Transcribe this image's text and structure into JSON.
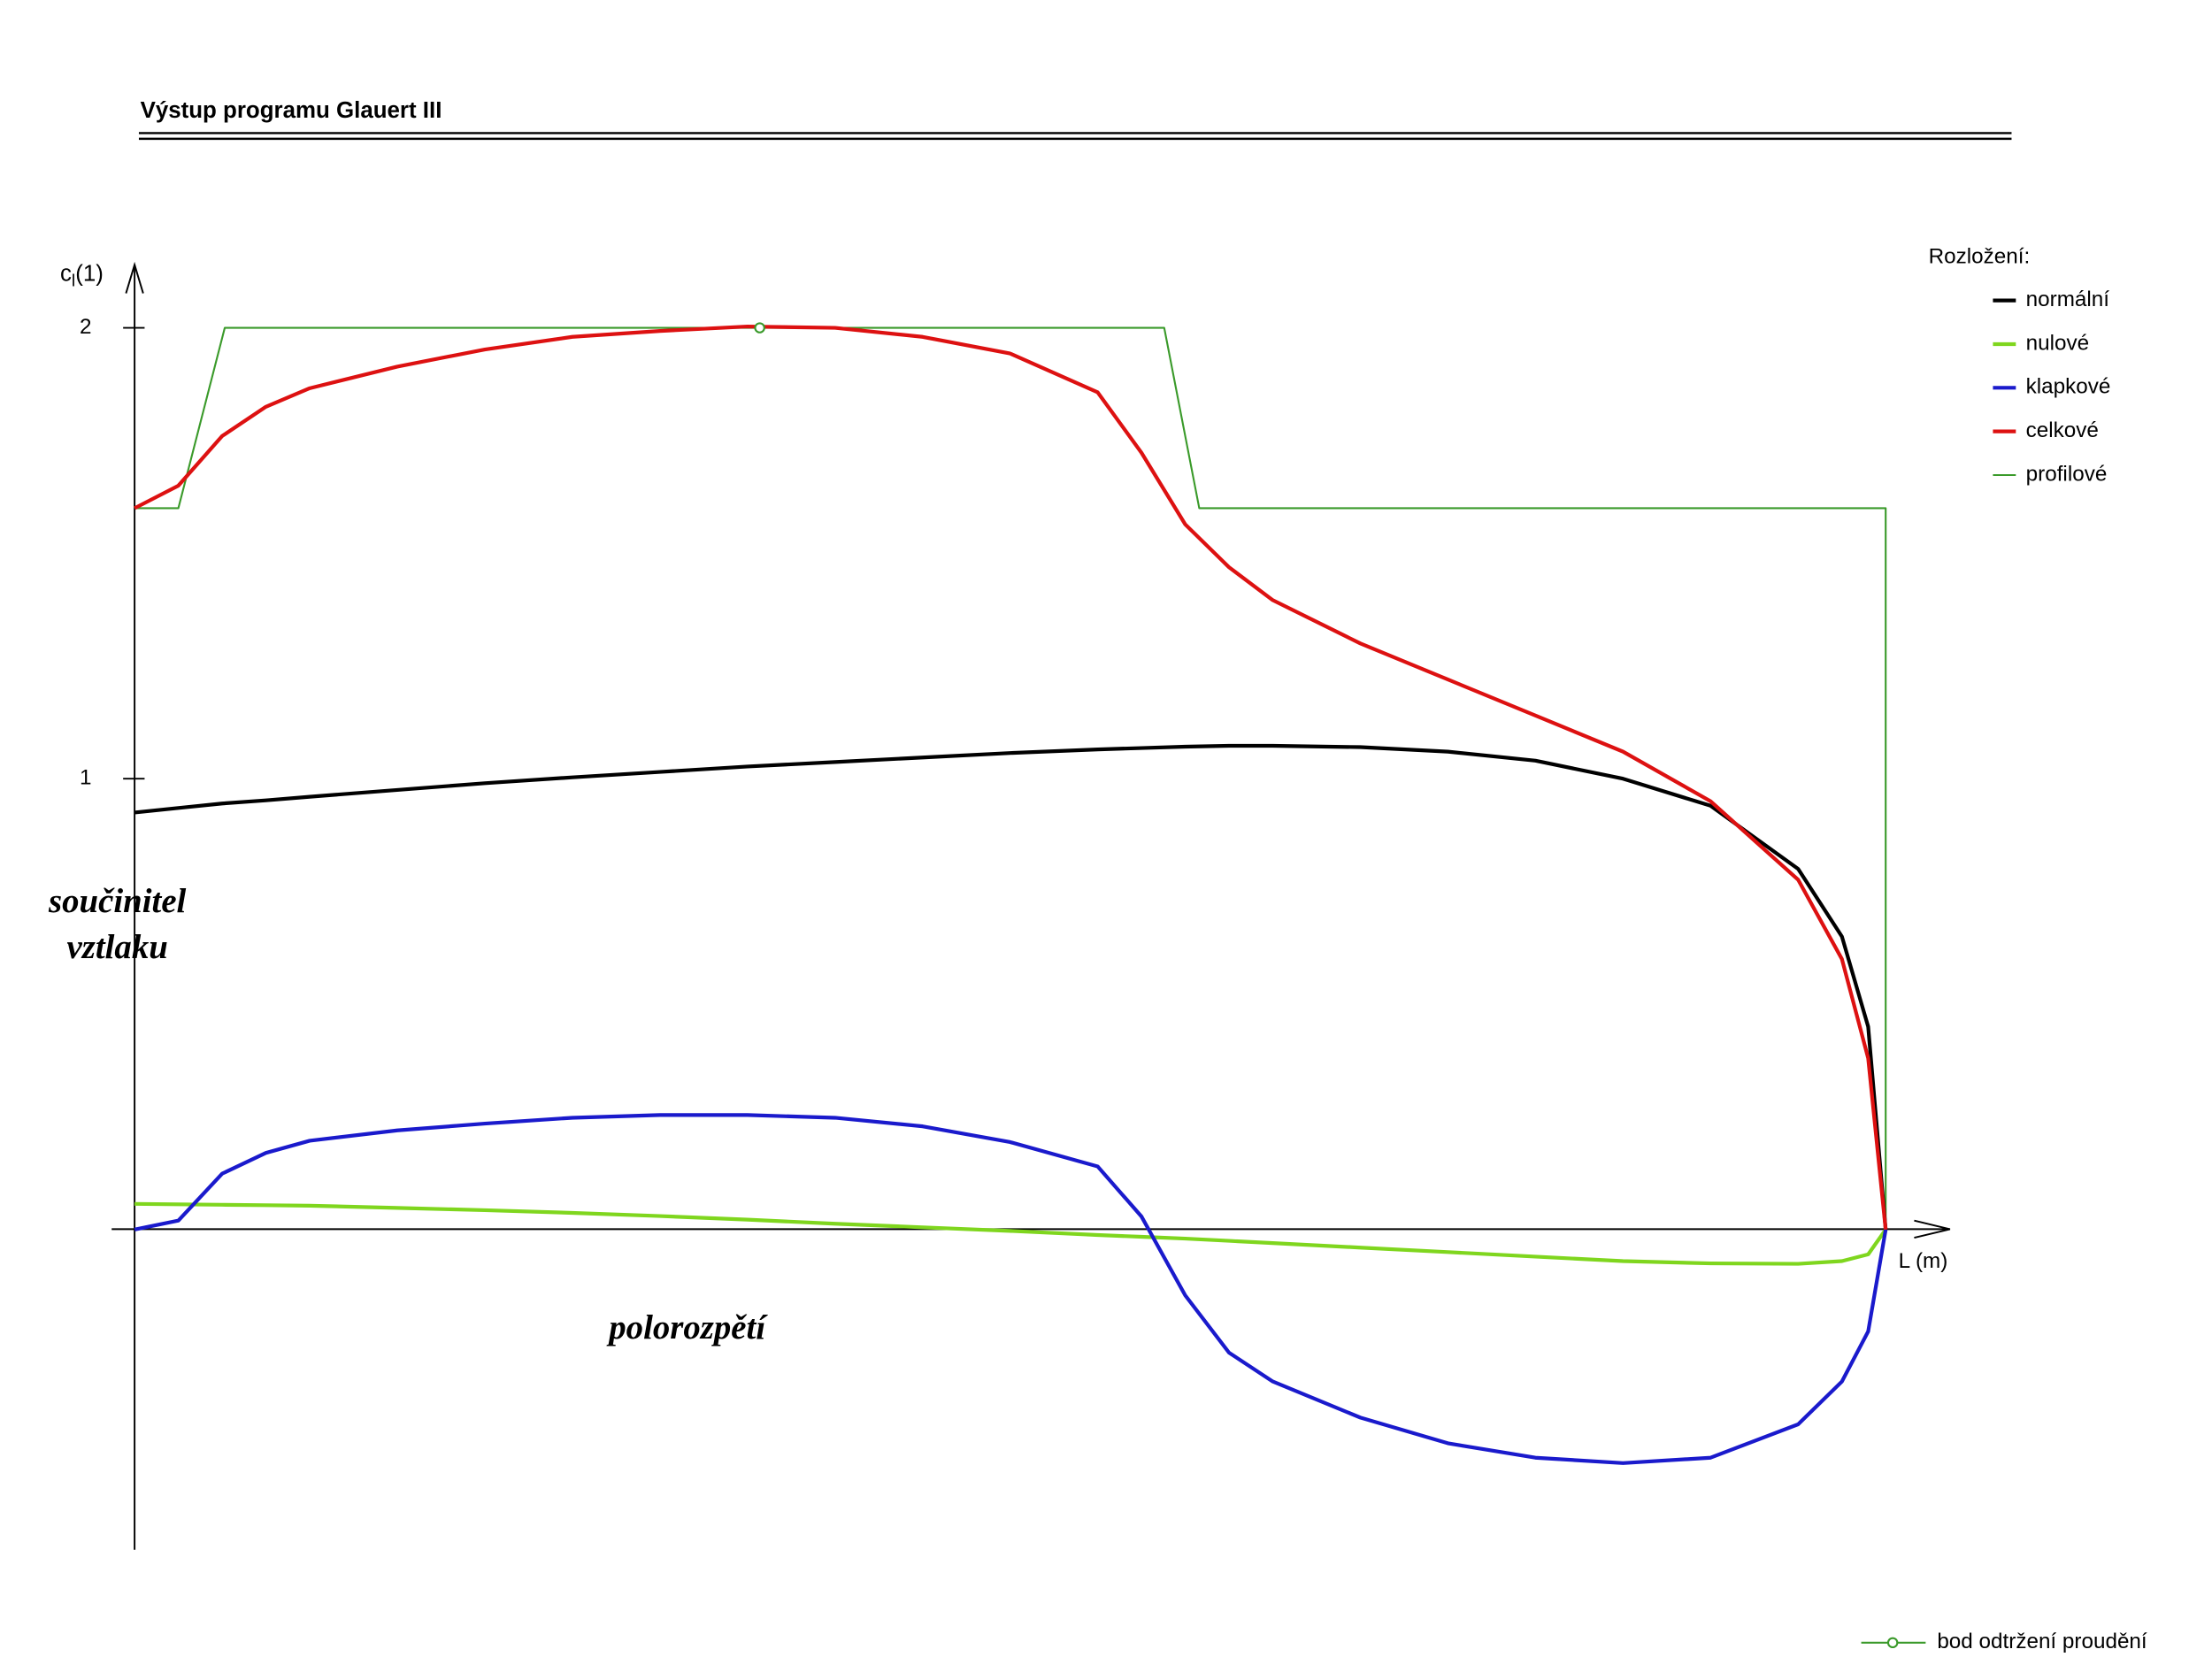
{
  "header": {
    "title": "Výstup programu Glauert III"
  },
  "chart_data": {
    "type": "line",
    "y_label": {
      "base": "c",
      "sub": "l",
      "suffix": "(1)"
    },
    "x_label": "L (m)",
    "annotations": {
      "y_caption": [
        "součinitel",
        "vztlaku"
      ],
      "x_caption": "polorozpětí"
    },
    "legend_title": "Rozložení:",
    "legend": "top-right",
    "xlim": [
      0,
      1.04
    ],
    "ylim": [
      -0.71,
      2.14
    ],
    "yticks": [
      1,
      2
    ],
    "series": [
      {
        "name": "normální",
        "color": "#000000",
        "x": [
          0,
          0.025,
          0.05,
          0.075,
          0.1,
          0.15,
          0.2,
          0.25,
          0.3,
          0.35,
          0.4,
          0.45,
          0.5,
          0.55,
          0.575,
          0.6,
          0.625,
          0.65,
          0.7,
          0.75,
          0.8,
          0.85,
          0.9,
          0.95,
          0.975,
          0.99,
          1.0
        ],
        "values": [
          0.925,
          0.935,
          0.945,
          0.952,
          0.96,
          0.975,
          0.99,
          1.003,
          1.015,
          1.027,
          1.037,
          1.047,
          1.057,
          1.065,
          1.068,
          1.071,
          1.073,
          1.073,
          1.07,
          1.06,
          1.04,
          1.0,
          0.94,
          0.8,
          0.65,
          0.45,
          0
        ]
      },
      {
        "name": "nulové",
        "color": "#7fd61e",
        "x": [
          0,
          0.025,
          0.05,
          0.075,
          0.1,
          0.15,
          0.2,
          0.25,
          0.3,
          0.35,
          0.4,
          0.45,
          0.5,
          0.55,
          0.575,
          0.6,
          0.625,
          0.65,
          0.7,
          0.75,
          0.8,
          0.85,
          0.9,
          0.95,
          0.975,
          0.99,
          1.0
        ],
        "values": [
          0.057,
          0.056,
          0.055,
          0.054,
          0.053,
          0.048,
          0.043,
          0.037,
          0.03,
          0.022,
          0.013,
          0.005,
          -0.003,
          -0.012,
          -0.016,
          -0.02,
          -0.025,
          -0.03,
          -0.04,
          -0.05,
          -0.06,
          -0.07,
          -0.075,
          -0.076,
          -0.07,
          -0.055,
          0
        ]
      },
      {
        "name": "klapkové",
        "color": "#1a1acc",
        "x": [
          0,
          0.025,
          0.05,
          0.075,
          0.1,
          0.15,
          0.2,
          0.25,
          0.3,
          0.35,
          0.4,
          0.45,
          0.5,
          0.55,
          0.575,
          0.6,
          0.625,
          0.65,
          0.7,
          0.75,
          0.8,
          0.85,
          0.9,
          0.95,
          0.975,
          0.99,
          1.0
        ],
        "values": [
          0,
          0.02,
          0.124,
          0.17,
          0.197,
          0.22,
          0.235,
          0.248,
          0.254,
          0.254,
          0.248,
          0.229,
          0.194,
          0.14,
          0.029,
          -0.146,
          -0.273,
          -0.337,
          -0.417,
          -0.474,
          -0.506,
          -0.518,
          -0.506,
          -0.432,
          -0.337,
          -0.226,
          0
        ]
      },
      {
        "name": "celkové",
        "color": "#dd1111",
        "x": [
          0,
          0.025,
          0.05,
          0.075,
          0.1,
          0.15,
          0.2,
          0.25,
          0.3,
          0.35,
          0.4,
          0.45,
          0.5,
          0.55,
          0.575,
          0.6,
          0.625,
          0.65,
          0.7,
          0.75,
          0.8,
          0.85,
          0.9,
          0.95,
          0.975,
          0.99,
          1.0
        ],
        "values": [
          1.6,
          1.65,
          1.76,
          1.825,
          1.866,
          1.914,
          1.952,
          1.98,
          1.993,
          2.003,
          2.0,
          1.98,
          1.943,
          1.857,
          1.723,
          1.564,
          1.469,
          1.396,
          1.3,
          1.22,
          1.14,
          1.06,
          0.95,
          0.776,
          0.6,
          0.38,
          0
        ]
      },
      {
        "name": "profilové",
        "color": "#3a9a2a",
        "x": [
          0,
          0.025,
          0.0515,
          0.588,
          0.608,
          1.0,
          1.0
        ],
        "values": [
          1.6,
          1.6,
          2.0,
          2.0,
          1.6,
          1.6,
          0
        ]
      }
    ],
    "separation": {
      "name": "bod odtržení proudění",
      "color": "#3a9a2a",
      "x": 0.357,
      "y": 2.0
    }
  }
}
